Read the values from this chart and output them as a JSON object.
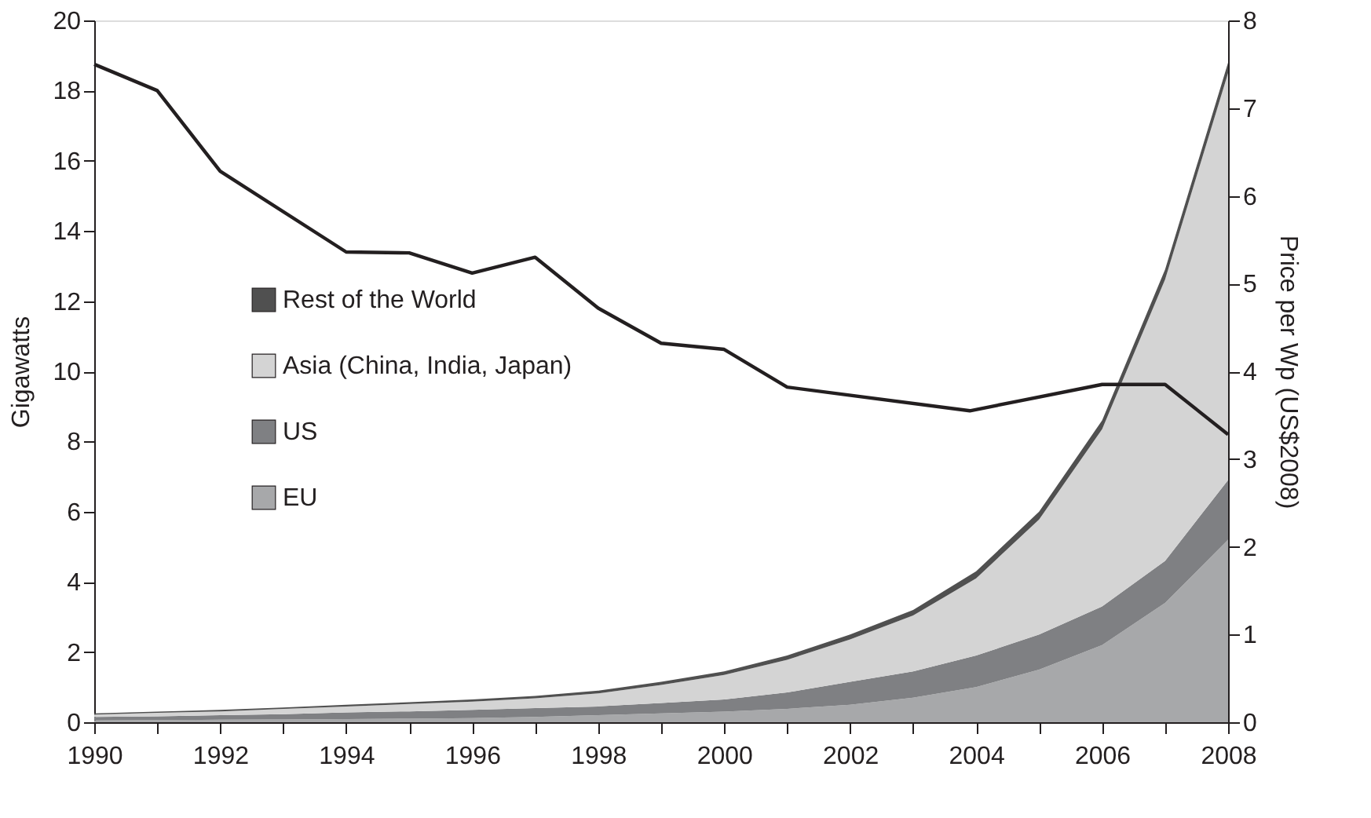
{
  "chart_data": {
    "type": "area",
    "stacked": true,
    "xlabel": null,
    "ylabel": "Gigawatts",
    "y2label": "Price per Wp (US$2008)",
    "x": [
      1990,
      1991,
      1992,
      1993,
      1994,
      1995,
      1996,
      1997,
      1998,
      1999,
      2000,
      2001,
      2002,
      2003,
      2004,
      2005,
      2006,
      2007,
      2008
    ],
    "series": [
      {
        "name": "EU",
        "color": "#a7a8aa",
        "values": [
          0.05,
          0.06,
          0.07,
          0.08,
          0.09,
          0.1,
          0.12,
          0.15,
          0.2,
          0.25,
          0.3,
          0.38,
          0.5,
          0.7,
          1.0,
          1.5,
          2.2,
          3.4,
          5.2
        ]
      },
      {
        "name": "US",
        "color": "#7f8083",
        "values": [
          0.1,
          0.11,
          0.13,
          0.15,
          0.19,
          0.21,
          0.23,
          0.25,
          0.25,
          0.3,
          0.35,
          0.47,
          0.65,
          0.75,
          0.9,
          1.0,
          1.1,
          1.2,
          1.7
        ]
      },
      {
        "name": "Asia (China, India, Japan)",
        "color": "#d4d4d4",
        "values": [
          0.07,
          0.1,
          0.11,
          0.15,
          0.17,
          0.21,
          0.24,
          0.28,
          0.37,
          0.51,
          0.7,
          0.93,
          1.21,
          1.59,
          2.2,
          3.28,
          5.05,
          8.02,
          11.6
        ]
      },
      {
        "name": "Rest of the World",
        "color": "#505050",
        "values": [
          0.03,
          0.03,
          0.04,
          0.04,
          0.05,
          0.05,
          0.06,
          0.07,
          0.08,
          0.09,
          0.1,
          0.12,
          0.14,
          0.16,
          0.2,
          0.22,
          0.25,
          0.28,
          0.3
        ]
      },
      {
        "type": "line",
        "axis": "y2",
        "color": "#231f20",
        "x": [
          1990,
          1991,
          1992,
          1994,
          1995,
          1996,
          1997,
          1998,
          1999,
          2000,
          2001,
          2003.9,
          2006,
          2007,
          2008
        ],
        "values": [
          7.5,
          7.2,
          6.28,
          5.36,
          5.35,
          5.12,
          5.3,
          4.72,
          4.32,
          4.25,
          3.82,
          3.55,
          3.85,
          3.85,
          3.28
        ]
      }
    ],
    "xlim": [
      1990,
      2008
    ],
    "xticks": [
      1990,
      {
        "value": 1991,
        "label": null
      },
      1992,
      {
        "value": 1993,
        "label": null
      },
      1994,
      {
        "value": 1995,
        "label": null
      },
      1996,
      {
        "value": 1997,
        "label": null
      },
      1998,
      {
        "value": 1999,
        "label": null
      },
      2000,
      {
        "value": 2001,
        "label": null
      },
      2002,
      {
        "value": 2003,
        "label": null
      },
      2004,
      {
        "value": 2005,
        "label": null
      },
      2006,
      {
        "value": 2007,
        "label": null
      },
      2008
    ],
    "ylim": [
      0,
      20
    ],
    "yticks": [
      0,
      2,
      4,
      6,
      8,
      10,
      12,
      14,
      16,
      18,
      20
    ],
    "y2lim": [
      0,
      8
    ],
    "y2ticks": [
      0,
      1,
      2,
      3,
      4,
      5,
      6,
      7,
      8
    ],
    "grid": false,
    "legend": "left",
    "line_style": "solid"
  }
}
